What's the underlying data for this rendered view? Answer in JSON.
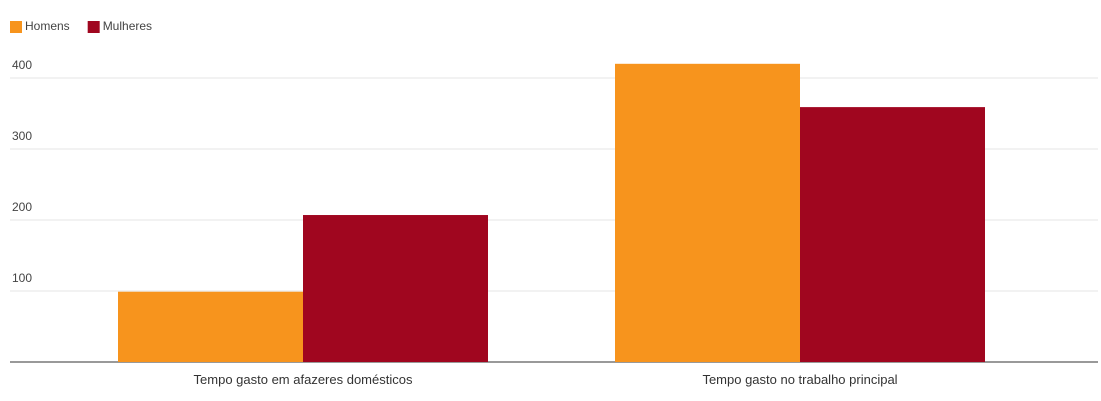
{
  "chart_data": {
    "type": "bar",
    "categories": [
      "Tempo gasto em afazeres domésticos",
      "Tempo gasto no trabalho principal"
    ],
    "series": [
      {
        "name": "Homens",
        "color": "#f7941d",
        "values": [
          99,
          420
        ]
      },
      {
        "name": "Mulheres",
        "color": "#a0061f",
        "values": [
          207,
          359
        ]
      }
    ],
    "ylim": [
      0,
      450
    ],
    "yticks": [
      100,
      200,
      300,
      400
    ],
    "grid": true,
    "legend": "top-left"
  }
}
